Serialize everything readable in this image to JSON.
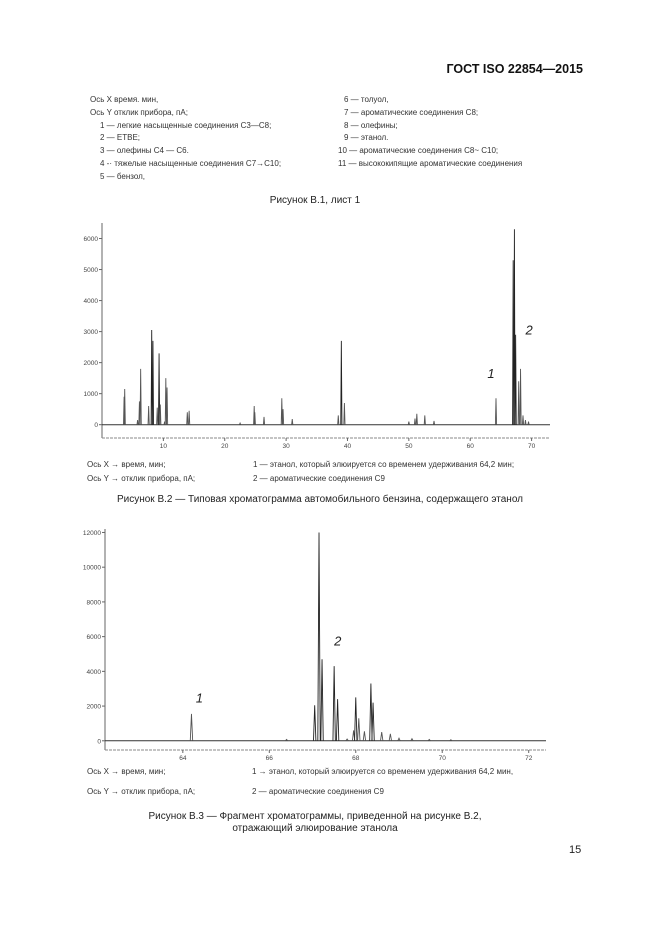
{
  "header": {
    "standard": "ГОСТ ISO 22854—2015"
  },
  "legend1": {
    "left": [
      "Ось X время. мин,",
      "Ось Y отклик прибора, пА;",
      "1 — легкие насыщенные соединения С3—С8;",
      "2 — ЕТВЕ;",
      "3 — олефины С4 — С6.",
      "4 -· тяжелые насыщенные соединения С7→С10;",
      "5 — бензол,"
    ],
    "right": [
      "6 — толуол,",
      "7 — ароматические соединения С8;",
      "8 — олефины;",
      "9 — этанол.",
      "10 — ароматические соединения С8~ С10;",
      "11 — высококипящие ароматические соединения"
    ]
  },
  "caption1": "Рисунок В.1, лист 1",
  "legend2": {
    "axis_x": "Ось X → время, мин;",
    "axis_y": "Ось Y → отклик прибора, пА;",
    "item1": "1 — этанол, который элюируется со временем удерживания 64,2 мин;",
    "item2": "2 — ароматические соединения С9"
  },
  "caption2": "Рисунок В.2 — Типовая хроматограмма автомобильного бензина, содержащего этанол",
  "legend3": {
    "axis_x": "Ось X → время, мин;",
    "axis_y": "Ось Y → отклик прибора, пА;",
    "item1": "1 → этанол, который элюируется со временем удерживания 64,2 мин,",
    "item2": "2 — ароматические соединения С9"
  },
  "caption3": {
    "line1": "Рисунок В.3 — Фрагмент хроматограммы, приведенной на рисунке В.2,",
    "line2": "отражающий элюирование этанола"
  },
  "page_number": "15",
  "chart_data": [
    {
      "type": "line",
      "title": "Рисунок В.2 — Типовая хроматограмма автомобильного бензина, содержащего этанол",
      "xlabel": "время, мин",
      "ylabel": "отклик прибора, пА",
      "xlim": [
        0,
        73
      ],
      "ylim": [
        -300,
        6500
      ],
      "xticks": [
        10,
        20,
        30,
        40,
        50,
        60,
        70
      ],
      "yticks": [
        0,
        1000,
        2000,
        3000,
        4000,
        5000,
        6000
      ],
      "grid": false,
      "annotations": [
        {
          "text": "1",
          "x": 62.8,
          "y": 1500
        },
        {
          "text": "2",
          "x": 69.0,
          "y": 2900
        }
      ],
      "peaks": [
        {
          "x": 3.7,
          "y": 1150
        },
        {
          "x": 3.6,
          "y": 900
        },
        {
          "x": 5.8,
          "y": 150
        },
        {
          "x": 6.1,
          "y": 750
        },
        {
          "x": 6.3,
          "y": 1800
        },
        {
          "x": 7.6,
          "y": 600
        },
        {
          "x": 8.1,
          "y": 3050
        },
        {
          "x": 8.3,
          "y": 2700
        },
        {
          "x": 9.0,
          "y": 550
        },
        {
          "x": 9.3,
          "y": 2300
        },
        {
          "x": 9.5,
          "y": 650
        },
        {
          "x": 10.2,
          "y": 100
        },
        {
          "x": 10.4,
          "y": 1500
        },
        {
          "x": 10.6,
          "y": 1200
        },
        {
          "x": 13.9,
          "y": 400
        },
        {
          "x": 14.2,
          "y": 450
        },
        {
          "x": 22.5,
          "y": 50
        },
        {
          "x": 24.8,
          "y": 600
        },
        {
          "x": 24.9,
          "y": 400
        },
        {
          "x": 26.4,
          "y": 250
        },
        {
          "x": 29.3,
          "y": 850
        },
        {
          "x": 29.5,
          "y": 500
        },
        {
          "x": 31.0,
          "y": 180
        },
        {
          "x": 38.5,
          "y": 300
        },
        {
          "x": 39.0,
          "y": 2700
        },
        {
          "x": 39.5,
          "y": 700
        },
        {
          "x": 50.0,
          "y": 100
        },
        {
          "x": 51.0,
          "y": 200
        },
        {
          "x": 51.3,
          "y": 350
        },
        {
          "x": 52.6,
          "y": 300
        },
        {
          "x": 54.1,
          "y": 120
        },
        {
          "x": 64.2,
          "y": 850
        },
        {
          "x": 67.0,
          "y": 5300
        },
        {
          "x": 67.2,
          "y": 6300
        },
        {
          "x": 67.4,
          "y": 2900
        },
        {
          "x": 67.9,
          "y": 1400
        },
        {
          "x": 68.2,
          "y": 1800
        },
        {
          "x": 68.6,
          "y": 300
        },
        {
          "x": 69.0,
          "y": 150
        },
        {
          "x": 69.5,
          "y": 100
        }
      ]
    },
    {
      "type": "line",
      "title": "Рисунок В.3 — Фрагмент хроматограммы, приведенной на рисунке В.2, отражающий элюирование этанола",
      "xlabel": "время, мин",
      "ylabel": "отклик прибора, пА",
      "xlim": [
        62.2,
        72.4
      ],
      "ylim": [
        -300,
        12200
      ],
      "xticks": [
        64,
        66,
        68,
        70,
        72
      ],
      "yticks": [
        0,
        2000,
        4000,
        6000,
        8000,
        10000,
        12000
      ],
      "grid": false,
      "annotations": [
        {
          "text": "1",
          "x": 64.3,
          "y": 2200
        },
        {
          "text": "2",
          "x": 67.5,
          "y": 5500
        }
      ],
      "peaks": [
        {
          "x": 64.2,
          "y": 1550
        },
        {
          "x": 66.4,
          "y": 80
        },
        {
          "x": 67.05,
          "y": 2050
        },
        {
          "x": 67.15,
          "y": 12000
        },
        {
          "x": 67.22,
          "y": 4700
        },
        {
          "x": 67.5,
          "y": 4300
        },
        {
          "x": 67.58,
          "y": 2400
        },
        {
          "x": 67.8,
          "y": 100
        },
        {
          "x": 67.95,
          "y": 600
        },
        {
          "x": 68.0,
          "y": 2500
        },
        {
          "x": 68.07,
          "y": 1300
        },
        {
          "x": 68.2,
          "y": 550
        },
        {
          "x": 68.35,
          "y": 3300
        },
        {
          "x": 68.4,
          "y": 2200
        },
        {
          "x": 68.6,
          "y": 500
        },
        {
          "x": 68.8,
          "y": 400
        },
        {
          "x": 69.0,
          "y": 150
        },
        {
          "x": 69.3,
          "y": 120
        },
        {
          "x": 69.7,
          "y": 80
        },
        {
          "x": 70.2,
          "y": 60
        }
      ]
    }
  ]
}
